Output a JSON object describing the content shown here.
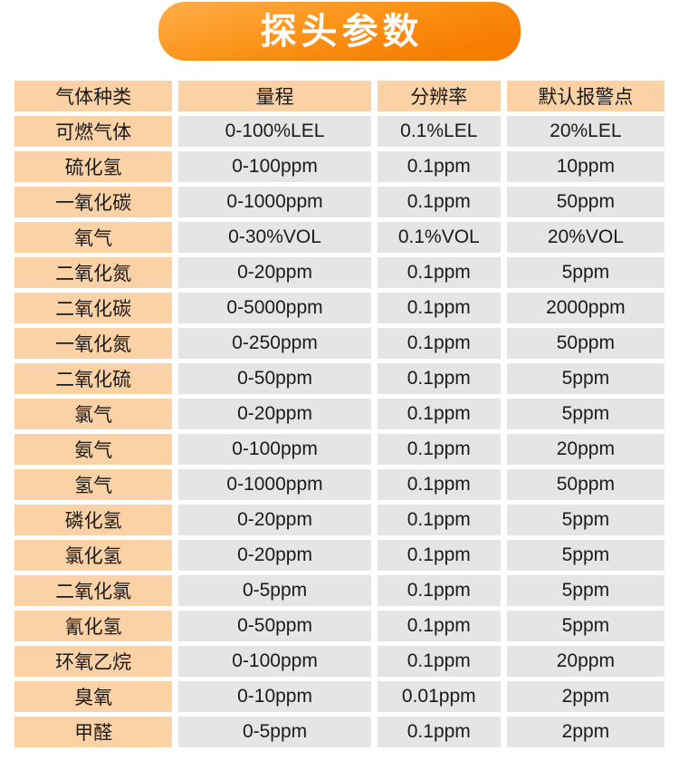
{
  "title": "探头参数",
  "table": {
    "headers": [
      "气体种类",
      "量程",
      "分辨率",
      "默认报警点"
    ],
    "rows": [
      [
        "可燃气体",
        "0-100%LEL",
        "0.1%LEL",
        "20%LEL"
      ],
      [
        "硫化氢",
        "0-100ppm",
        "0.1ppm",
        "10ppm"
      ],
      [
        "一氧化碳",
        "0-1000ppm",
        "0.1ppm",
        "50ppm"
      ],
      [
        "氧气",
        "0-30%VOL",
        "0.1%VOL",
        "20%VOL"
      ],
      [
        "二氧化氮",
        "0-20ppm",
        "0.1ppm",
        "5ppm"
      ],
      [
        "二氧化碳",
        "0-5000ppm",
        "0.1ppm",
        "2000ppm"
      ],
      [
        "一氧化氮",
        "0-250ppm",
        "0.1ppm",
        "50ppm"
      ],
      [
        "二氧化硫",
        "0-50ppm",
        "0.1ppm",
        "5ppm"
      ],
      [
        "氯气",
        "0-20ppm",
        "0.1ppm",
        "5ppm"
      ],
      [
        "氨气",
        "0-100ppm",
        "0.1ppm",
        "20ppm"
      ],
      [
        "氢气",
        "0-1000ppm",
        "0.1ppm",
        "50ppm"
      ],
      [
        "磷化氢",
        "0-20ppm",
        "0.1ppm",
        "5ppm"
      ],
      [
        "氯化氢",
        "0-20ppm",
        "0.1ppm",
        "5ppm"
      ],
      [
        "二氧化氯",
        "0-5ppm",
        "0.1ppm",
        "5ppm"
      ],
      [
        "氰化氢",
        "0-50ppm",
        "0.1ppm",
        "5ppm"
      ],
      [
        "环氧乙烷",
        "0-100ppm",
        "0.1ppm",
        "20ppm"
      ],
      [
        "臭氧",
        "0-10ppm",
        "0.01ppm",
        "2ppm"
      ],
      [
        "甲醛",
        "0-5ppm",
        "0.1ppm",
        "2ppm"
      ]
    ]
  },
  "colors": {
    "banner_gradient_top": "#ffae4c",
    "banner_gradient_bottom": "#f77c00",
    "header_cell_bg": "#fbd1a6",
    "data_cell_bg": "#e5e5e5",
    "title_text": "#ffffff",
    "body_text": "#1b1b1b",
    "page_bg": "#ffffff"
  }
}
